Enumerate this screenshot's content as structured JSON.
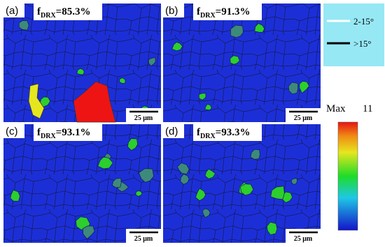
{
  "panels": [
    {
      "label": "(a)",
      "f": "f",
      "subscript": "DRX",
      "value": "=85.3%",
      "scale_bar": "25 μm"
    },
    {
      "label": "(b)",
      "f": "f",
      "subscript": "DRX",
      "value": "=91.3%",
      "scale_bar": "25 μm"
    },
    {
      "label": "(c)",
      "f": "f",
      "subscript": "DRX",
      "value": "=93.1%",
      "scale_bar": "25 μm"
    },
    {
      "label": "(d)",
      "f": "f",
      "subscript": "DRX",
      "value": "=93.3%",
      "scale_bar": "25 μm"
    }
  ],
  "legend": {
    "items": [
      {
        "label": "2-15°"
      },
      {
        "label": ">15°"
      }
    ]
  },
  "colorbar": {
    "max_label": "Max",
    "max_value": 11
  }
}
